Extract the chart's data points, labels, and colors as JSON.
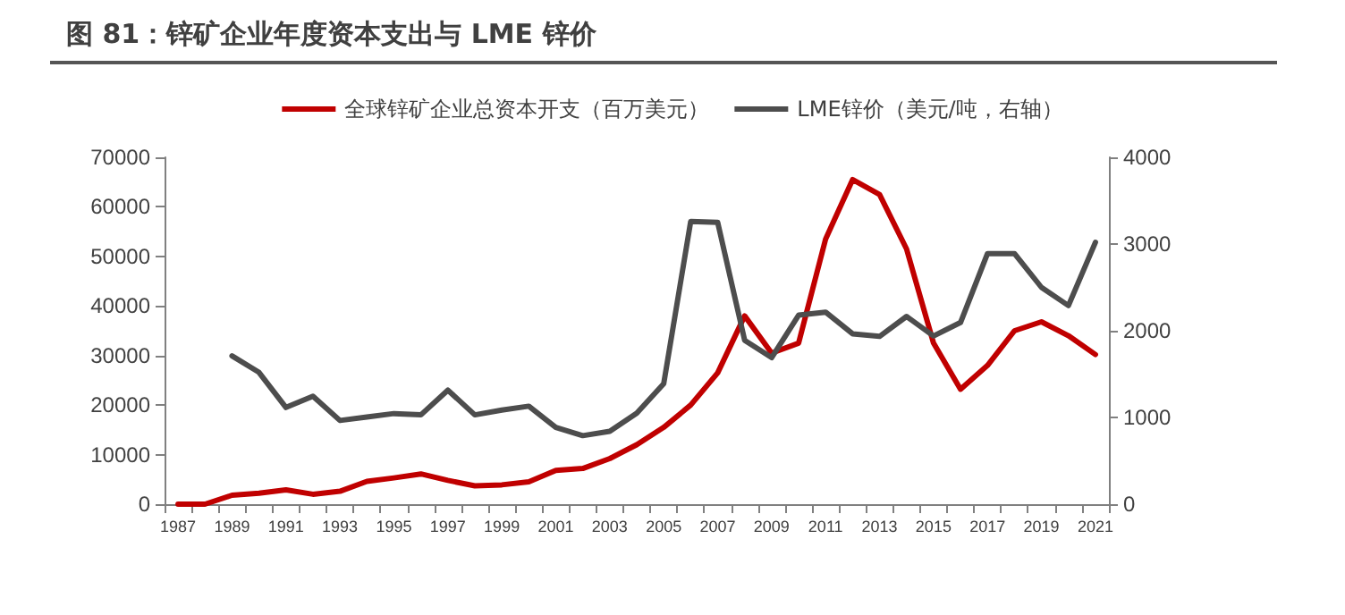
{
  "chart_data": {
    "type": "line",
    "title": "图 81：锌矿企业年度资本支出与 LME 锌价",
    "categories": [
      "1987",
      null,
      "1989",
      null,
      "1991",
      null,
      "1993",
      null,
      "1995",
      null,
      "1997",
      null,
      "1999",
      null,
      "2001",
      null,
      "2003",
      null,
      "2005",
      null,
      "2007",
      null,
      "2009",
      null,
      "2011",
      null,
      "2013",
      null,
      "2015",
      null,
      "2017",
      null,
      "2019",
      null,
      "2021"
    ],
    "series": [
      {
        "name": "全球锌矿企业总资本开支（百万美元）",
        "color": "#c00000",
        "values": [
          0,
          0,
          1800,
          2200,
          2900,
          2000,
          2600,
          4600,
          5300,
          6100,
          4800,
          3700,
          3900,
          4500,
          6800,
          7200,
          9200,
          12000,
          15500,
          20000,
          26500,
          38000,
          30500,
          32500,
          53500,
          65500,
          62500,
          51500,
          32500,
          23200,
          28000,
          35000,
          36800,
          34000,
          30200
        ]
      },
      {
        "name": "LME锌价（美元/吨，右轴）",
        "color": "#4d4d4d",
        "axis": "y2",
        "values": [
          null,
          null,
          1710,
          1520,
          1115,
          1245,
          965,
          1005,
          1045,
          1030,
          1315,
          1030,
          1085,
          1130,
          885,
          790,
          840,
          1050,
          1390,
          3260,
          3250,
          1890,
          1690,
          2180,
          2215,
          1965,
          1935,
          2165,
          1940,
          2095,
          2890,
          2890,
          2500,
          2290,
          3020
        ]
      }
    ],
    "ylim": [
      0,
      70000
    ],
    "yticks": [
      0,
      10000,
      20000,
      30000,
      40000,
      50000,
      60000,
      70000
    ],
    "y2lim": [
      0,
      4000
    ],
    "y2ticks": [
      0,
      1000,
      2000,
      3000,
      4000
    ],
    "legend": "top",
    "grid": false,
    "marker": "none",
    "line_style": "solid"
  }
}
